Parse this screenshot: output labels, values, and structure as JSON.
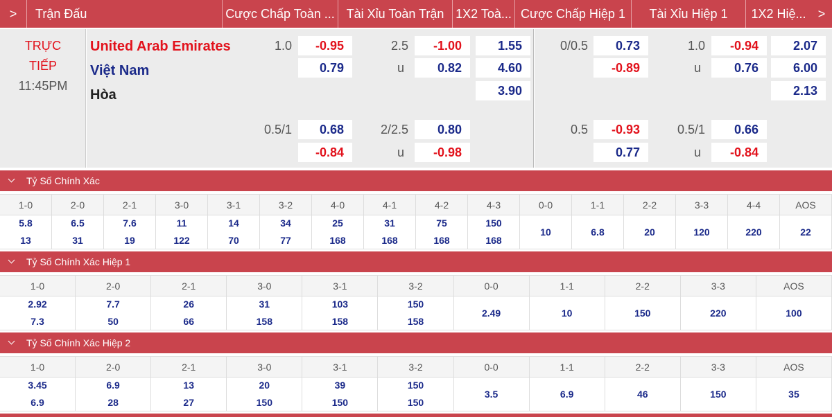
{
  "header": {
    "columns": [
      "Trận Đấu",
      "Cược Chấp Toàn ...",
      "Tài Xỉu Toàn Trận",
      "1X2 Toà...",
      "Cược Chấp Hiệp 1",
      "Tài Xỉu Hiệp 1",
      "1X2 Hiệ..."
    ]
  },
  "match": {
    "status": "TRỰC TIẾP",
    "time": "11:45PM",
    "teams": [
      "United Arab Emirates",
      "Việt Nam",
      "Hòa"
    ],
    "lines": [
      {
        "ft_hdp": {
          "line": "1.0",
          "home": "-0.95",
          "away": "0.79"
        },
        "ft_ou": {
          "line": "2.5",
          "over": "-1.00",
          "under_label": "u",
          "under": "0.82"
        },
        "ft_1x2": [
          "1.55",
          "4.60",
          "3.90"
        ],
        "h1_hdp": {
          "line": "0/0.5",
          "home": "0.73",
          "away": "-0.89"
        },
        "h1_ou": {
          "line": "1.0",
          "over": "-0.94",
          "under_label": "u",
          "under": "0.76"
        },
        "h1_1x2": [
          "2.07",
          "6.00",
          "2.13"
        ]
      },
      {
        "ft_hdp": {
          "line": "0.5/1",
          "home": "0.68",
          "away": "-0.84"
        },
        "ft_ou": {
          "line": "2/2.5",
          "over": "0.80",
          "under_label": "u",
          "under": "-0.98"
        },
        "h1_hdp": {
          "line": "0.5",
          "home": "-0.93",
          "away": "0.77"
        },
        "h1_ou": {
          "line": "0.5/1",
          "over": "0.66",
          "under_label": "u",
          "under": "-0.84"
        }
      }
    ]
  },
  "sections": [
    {
      "title": "Tỷ Số Chính Xác",
      "columns": [
        {
          "score": "1-0",
          "values": [
            "5.8",
            "13"
          ]
        },
        {
          "score": "2-0",
          "values": [
            "6.5",
            "31"
          ]
        },
        {
          "score": "2-1",
          "values": [
            "7.6",
            "19"
          ]
        },
        {
          "score": "3-0",
          "values": [
            "11",
            "122"
          ]
        },
        {
          "score": "3-1",
          "values": [
            "14",
            "70"
          ]
        },
        {
          "score": "3-2",
          "values": [
            "34",
            "77"
          ]
        },
        {
          "score": "4-0",
          "values": [
            "25",
            "168"
          ]
        },
        {
          "score": "4-1",
          "values": [
            "31",
            "168"
          ]
        },
        {
          "score": "4-2",
          "values": [
            "75",
            "168"
          ]
        },
        {
          "score": "4-3",
          "values": [
            "150",
            "168"
          ]
        },
        {
          "score": "0-0",
          "values": [
            "10"
          ]
        },
        {
          "score": "1-1",
          "values": [
            "6.8"
          ]
        },
        {
          "score": "2-2",
          "values": [
            "20"
          ]
        },
        {
          "score": "3-3",
          "values": [
            "120"
          ]
        },
        {
          "score": "4-4",
          "values": [
            "220"
          ]
        },
        {
          "score": "AOS",
          "values": [
            "22"
          ]
        }
      ]
    },
    {
      "title": "Tỷ Số Chính Xác Hiệp 1",
      "columns": [
        {
          "score": "1-0",
          "values": [
            "2.92",
            "7.3"
          ]
        },
        {
          "score": "2-0",
          "values": [
            "7.7",
            "50"
          ]
        },
        {
          "score": "2-1",
          "values": [
            "26",
            "66"
          ]
        },
        {
          "score": "3-0",
          "values": [
            "31",
            "158"
          ]
        },
        {
          "score": "3-1",
          "values": [
            "103",
            "158"
          ]
        },
        {
          "score": "3-2",
          "values": [
            "150",
            "158"
          ]
        },
        {
          "score": "0-0",
          "values": [
            "2.49"
          ]
        },
        {
          "score": "1-1",
          "values": [
            "10"
          ]
        },
        {
          "score": "2-2",
          "values": [
            "150"
          ]
        },
        {
          "score": "3-3",
          "values": [
            "220"
          ]
        },
        {
          "score": "AOS",
          "values": [
            "100"
          ]
        }
      ]
    },
    {
      "title": "Tỷ Số Chính Xác Hiệp 2",
      "columns": [
        {
          "score": "1-0",
          "values": [
            "3.45",
            "6.9"
          ]
        },
        {
          "score": "2-0",
          "values": [
            "6.9",
            "28"
          ]
        },
        {
          "score": "2-1",
          "values": [
            "13",
            "27"
          ]
        },
        {
          "score": "3-0",
          "values": [
            "20",
            "150"
          ]
        },
        {
          "score": "3-1",
          "values": [
            "39",
            "150"
          ]
        },
        {
          "score": "3-2",
          "values": [
            "150",
            "150"
          ]
        },
        {
          "score": "0-0",
          "values": [
            "3.5"
          ]
        },
        {
          "score": "1-1",
          "values": [
            "6.9"
          ]
        },
        {
          "score": "2-2",
          "values": [
            "46"
          ]
        },
        {
          "score": "3-3",
          "values": [
            "150"
          ]
        },
        {
          "score": "AOS",
          "values": [
            "35"
          ]
        }
      ]
    }
  ]
}
